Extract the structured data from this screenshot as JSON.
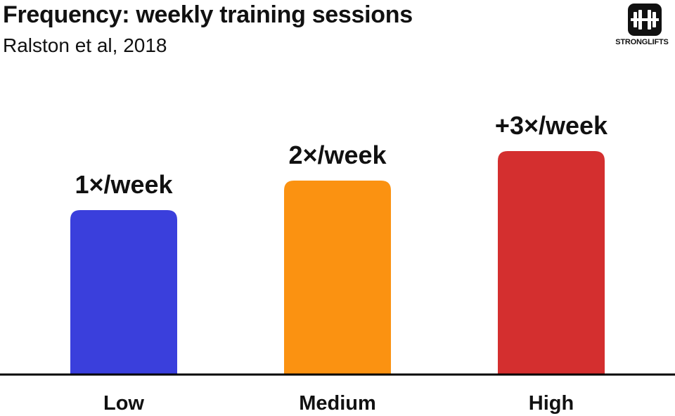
{
  "header": {
    "title": "Frequency: weekly training sessions",
    "subtitle": "Ralston et al, 2018"
  },
  "logo": {
    "icon": "barbell-icon",
    "text": "STRONGLIFTS"
  },
  "chart_data": {
    "type": "bar",
    "title": "Frequency: weekly training sessions",
    "subtitle": "Ralston et al, 2018",
    "categories": [
      "Low",
      "Medium",
      "High"
    ],
    "values": [
      1,
      2,
      3
    ],
    "data_labels": [
      "1×/week",
      "2×/week",
      "+3×/week"
    ],
    "colors": [
      "#3a3fdc",
      "#fb9211",
      "#d42f2f"
    ],
    "xlabel": "",
    "ylabel": "",
    "grid": false,
    "legend": "none"
  }
}
